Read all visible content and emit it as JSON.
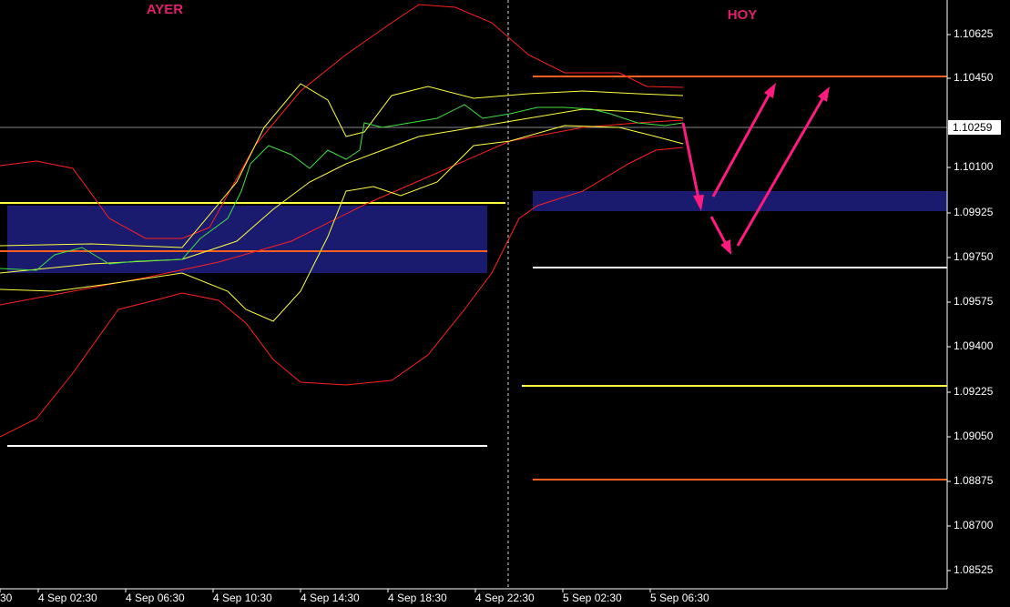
{
  "header": {
    "left_label": "AYER",
    "right_label": "HOY"
  },
  "price_axis": {
    "labels": [
      "1.10625",
      "1.10450",
      "1.10100",
      "1.09925",
      "1.09750",
      "1.09575",
      "1.09400",
      "1.09225",
      "1.09050",
      "1.08875",
      "1.08700",
      "1.08525"
    ],
    "current_price": "1.10259"
  },
  "time_axis": {
    "labels": [
      "30",
      "4 Sep 02:30",
      "4 Sep 06:30",
      "4 Sep 10:30",
      "4 Sep 14:30",
      "4 Sep 18:30",
      "4 Sep 22:30",
      "5 Sep 02:30",
      "5 Sep 06:30"
    ]
  }
}
